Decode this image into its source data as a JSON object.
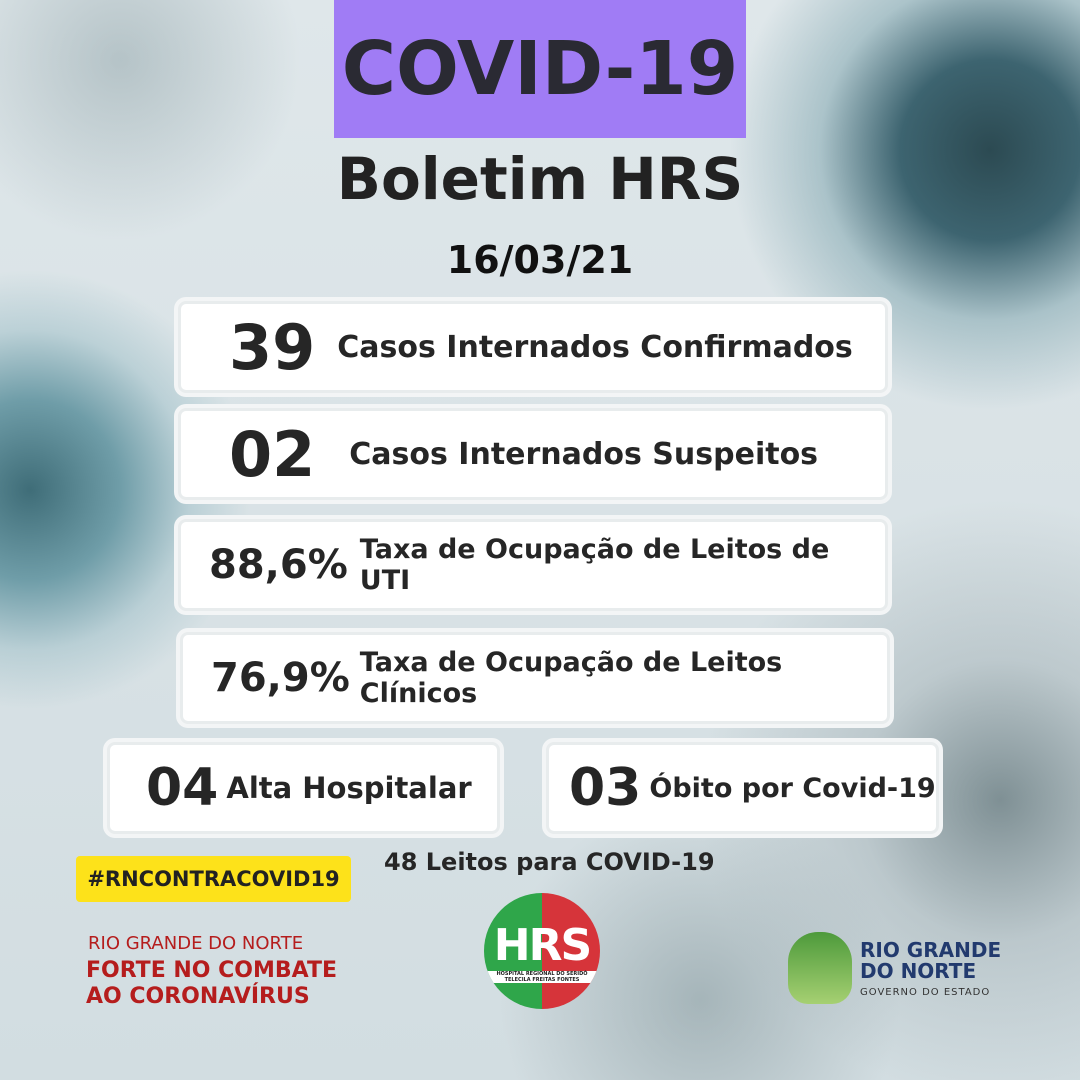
{
  "header": {
    "title": "COVID-19",
    "subtitle": "Boletim HRS",
    "date": "16/03/21"
  },
  "stats": [
    {
      "value": "39",
      "label": "Casos Internados Confirmados"
    },
    {
      "value": "02",
      "label": "Casos Internados Suspeitos"
    },
    {
      "value": "88,6%",
      "label": "Taxa de Ocupação de Leitos de UTI"
    },
    {
      "value": "76,9%",
      "label": "Taxa de Ocupação de Leitos Clínicos"
    },
    {
      "value": "04",
      "label": "Alta Hospitalar"
    },
    {
      "value": "03",
      "label": "Óbito por Covid-19"
    }
  ],
  "beds_note": "48 Leitos para COVID-19",
  "hashtag": "#RNCONTRACOVID19",
  "campaign": {
    "line1": "RIO GRANDE DO NORTE",
    "line2": "FORTE NO COMBATE",
    "line3": "AO CORONAVÍRUS"
  },
  "hrs_logo": {
    "text": "HRS",
    "caption": "HOSPITAL REGIONAL DO SERIDÓ TELECILA FREITAS FONTES"
  },
  "gov_logo": {
    "line1": "RIO GRANDE",
    "line2": "DO NORTE",
    "line3": "GOVERNO DO ESTADO"
  },
  "colors": {
    "title_bg": "#a07cf5",
    "hashtag_bg": "#fde21a",
    "campaign_red": "#b51d1d",
    "hrs_green": "#2fa64a",
    "hrs_red": "#d6343a"
  }
}
